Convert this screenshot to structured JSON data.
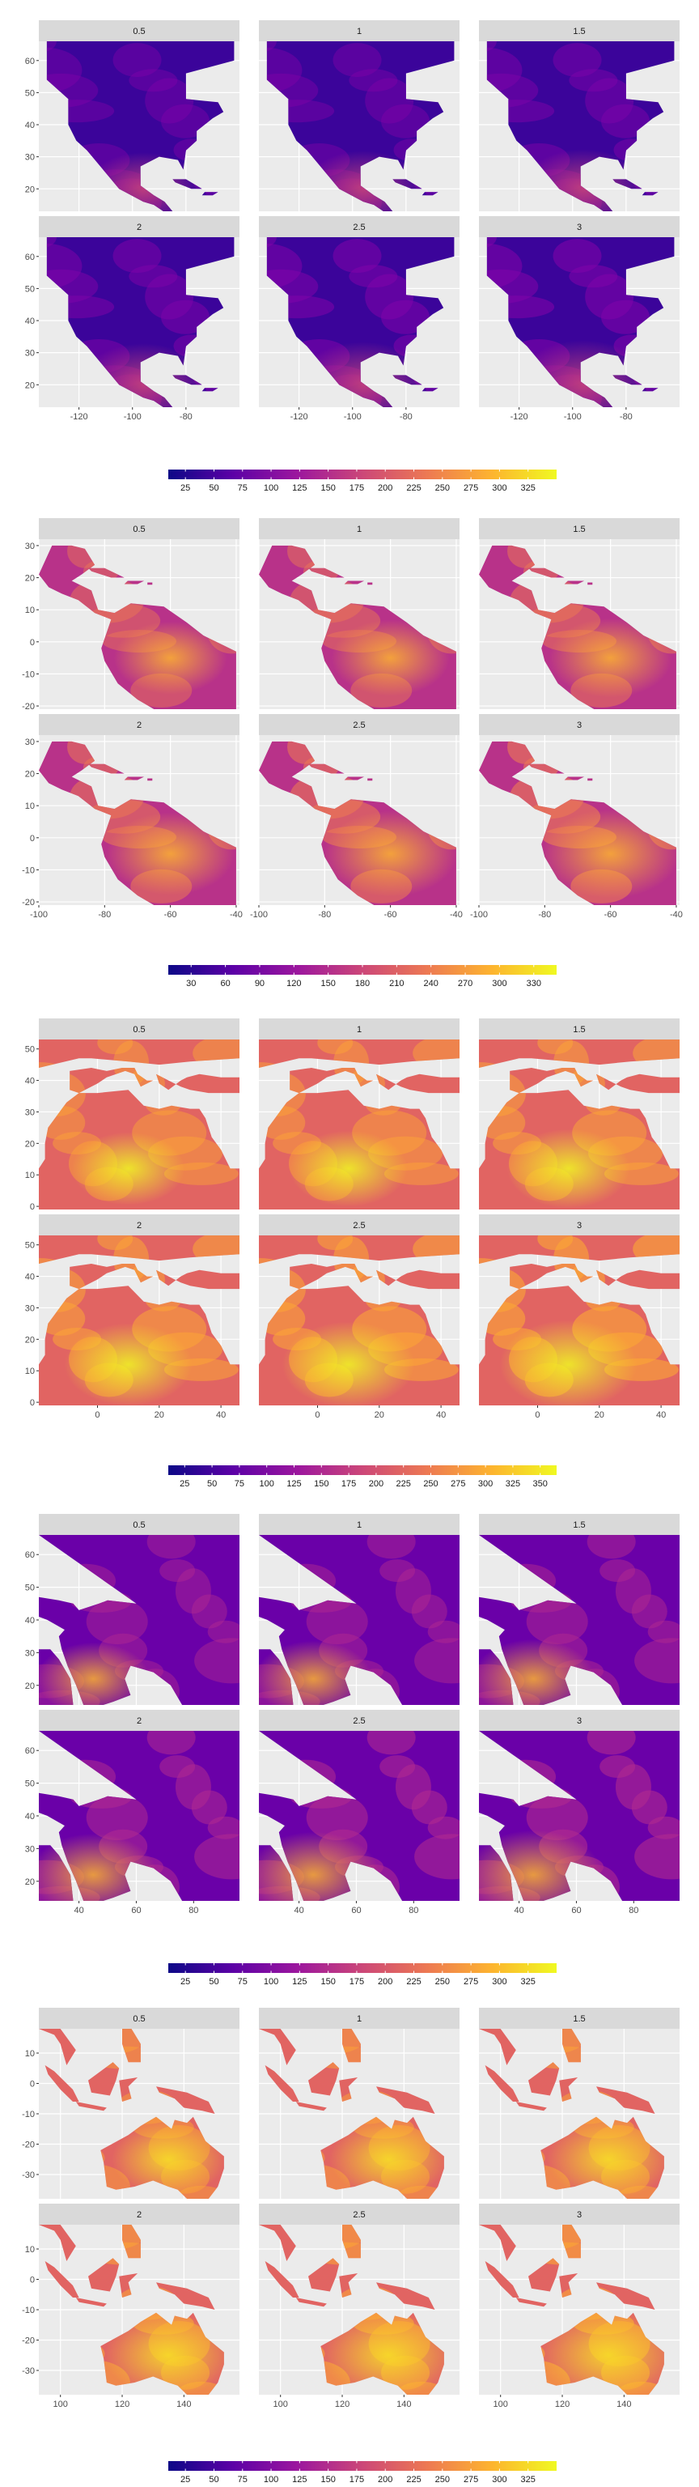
{
  "facet_labels": [
    "0.5",
    "1",
    "1.5",
    "2",
    "2.5",
    "3"
  ],
  "colors": {
    "panel_bg": "#ebebeb",
    "grid": "#ffffff",
    "strip_bg": "#d9d9d9",
    "palette": [
      "#0d0887",
      "#5c01a6",
      "#9c179e",
      "#cc4778",
      "#ed7953",
      "#fdb42f",
      "#f0f921"
    ]
  },
  "chart_data": [
    {
      "type": "heatmap",
      "region": "North America",
      "facets": [
        "0.5",
        "1",
        "1.5",
        "2",
        "2.5",
        "3"
      ],
      "x_ticks": [
        -120,
        -100,
        -80
      ],
      "y_ticks": [
        20,
        30,
        40,
        50,
        60
      ],
      "xlim": [
        -135,
        -60
      ],
      "ylim": [
        13,
        66
      ],
      "legend": {
        "ticks": [
          "25",
          "50",
          "75",
          "100",
          "125",
          "150",
          "175",
          "200",
          "225",
          "250",
          "275",
          "300",
          "325"
        ],
        "range": [
          10,
          350
        ],
        "position": "bottom"
      }
    },
    {
      "type": "heatmap",
      "region": "Central and South America",
      "facets": [
        "0.5",
        "1",
        "1.5",
        "2",
        "2.5",
        "3"
      ],
      "x_ticks": [
        -100,
        -80,
        -60,
        -40
      ],
      "y_ticks": [
        -20,
        -10,
        0,
        10,
        20,
        30
      ],
      "xlim": [
        -100,
        -39
      ],
      "ylim": [
        -21,
        32
      ],
      "legend": {
        "ticks": [
          "30",
          "60",
          "90",
          "120",
          "150",
          "180",
          "210",
          "240",
          "270",
          "300",
          "330"
        ],
        "range": [
          10,
          350
        ],
        "position": "bottom"
      }
    },
    {
      "type": "heatmap",
      "region": "Africa and Mediterranean",
      "facets": [
        "0.5",
        "1",
        "1.5",
        "2",
        "2.5",
        "3"
      ],
      "x_ticks": [
        0,
        20,
        40
      ],
      "y_ticks": [
        0,
        10,
        20,
        30,
        40,
        50
      ],
      "xlim": [
        -19,
        46
      ],
      "ylim": [
        -1,
        53
      ],
      "legend": {
        "ticks": [
          "25",
          "50",
          "75",
          "100",
          "125",
          "150",
          "175",
          "200",
          "225",
          "250",
          "275",
          "300",
          "325",
          "350"
        ],
        "range": [
          10,
          365
        ],
        "position": "bottom"
      }
    },
    {
      "type": "heatmap",
      "region": "Middle East and Asia",
      "facets": [
        "0.5",
        "1",
        "1.5",
        "2",
        "2.5",
        "3"
      ],
      "x_ticks": [
        40,
        60,
        80
      ],
      "y_ticks": [
        20,
        30,
        40,
        50,
        60
      ],
      "xlim": [
        26,
        96
      ],
      "ylim": [
        14,
        66
      ],
      "legend": {
        "ticks": [
          "25",
          "50",
          "75",
          "100",
          "125",
          "150",
          "175",
          "200",
          "225",
          "250",
          "275",
          "300",
          "325"
        ],
        "range": [
          10,
          350
        ],
        "position": "bottom"
      }
    },
    {
      "type": "heatmap",
      "region": "Southeast Asia and Australia",
      "facets": [
        "0.5",
        "1",
        "1.5",
        "2",
        "2.5",
        "3"
      ],
      "x_ticks": [
        100,
        120,
        140
      ],
      "y_ticks": [
        -30,
        -20,
        -10,
        0,
        10
      ],
      "xlim": [
        93,
        158
      ],
      "ylim": [
        -38,
        18
      ],
      "legend": {
        "ticks": [
          "25",
          "50",
          "75",
          "100",
          "125",
          "150",
          "175",
          "200",
          "225",
          "250",
          "275",
          "300",
          "325"
        ],
        "range": [
          10,
          350
        ],
        "position": "bottom"
      }
    }
  ]
}
